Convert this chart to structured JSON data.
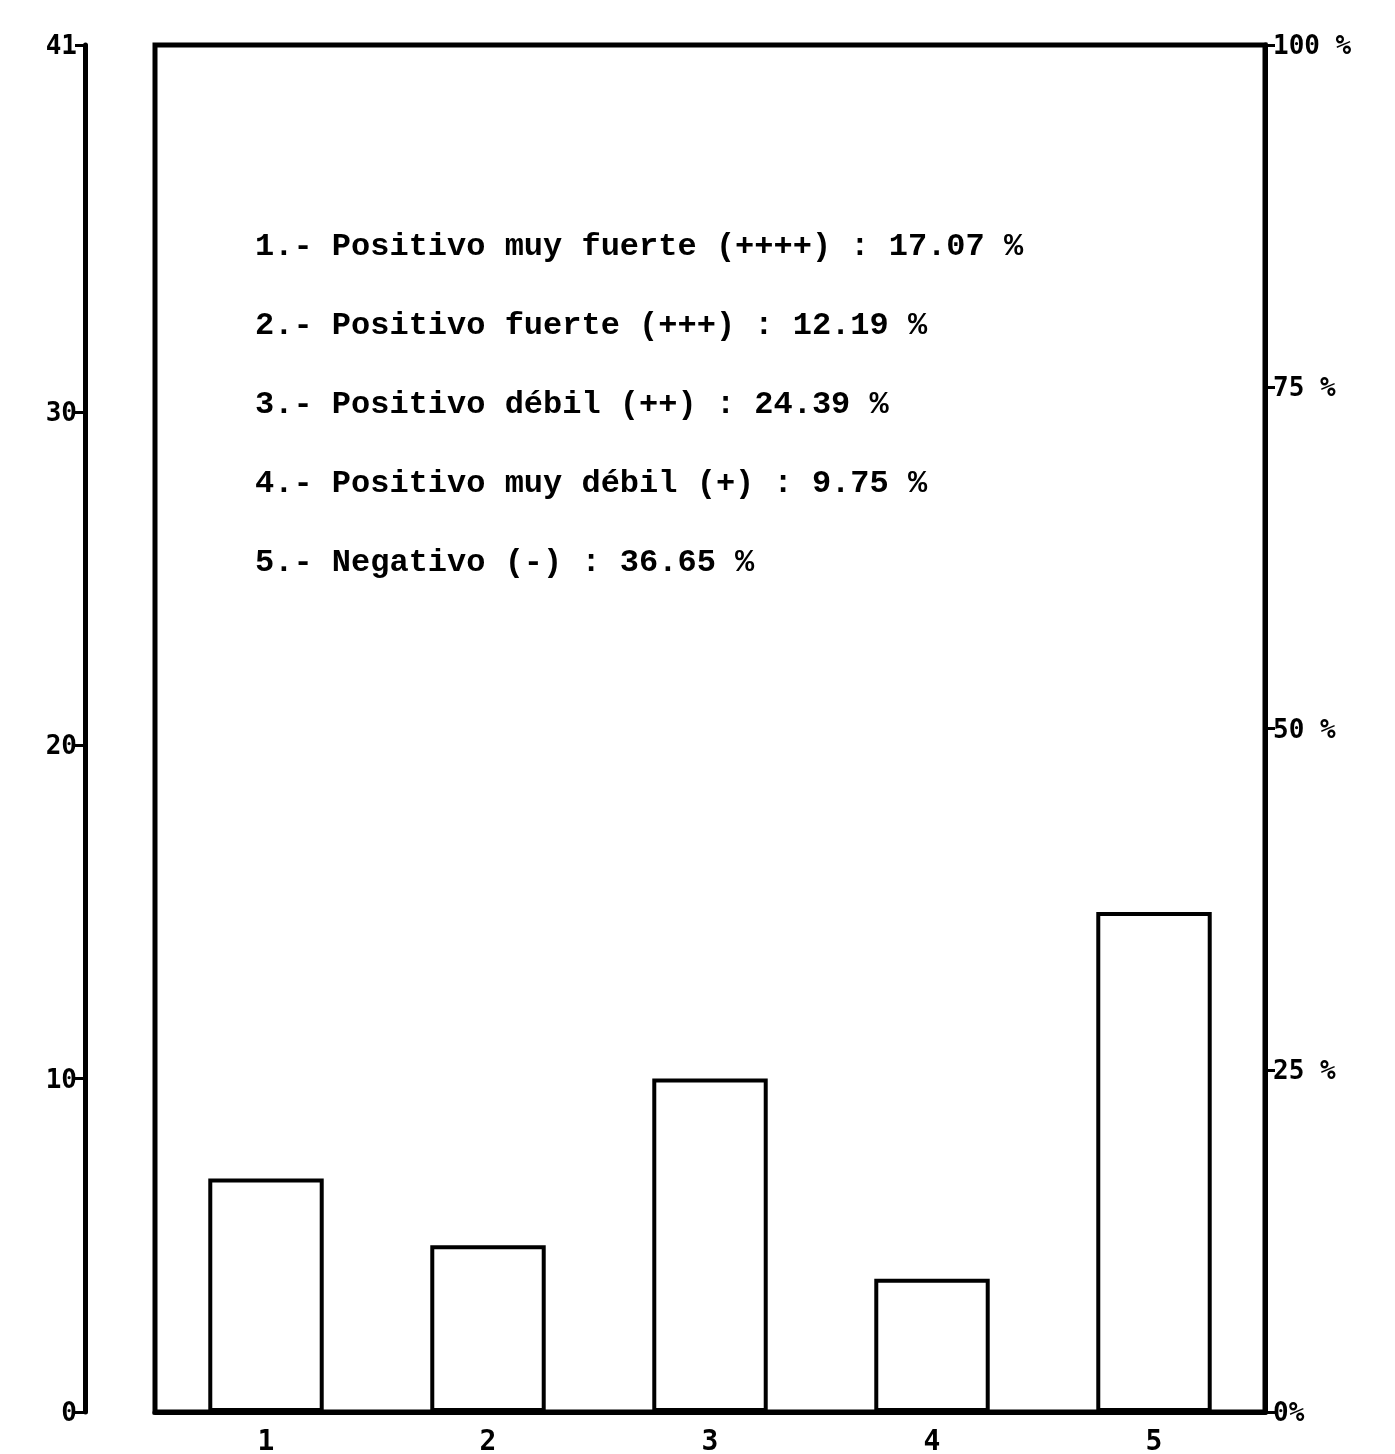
{
  "chart_data": {
    "type": "bar",
    "categories": [
      "1",
      "2",
      "3",
      "4",
      "5"
    ],
    "values": [
      7,
      5,
      10,
      4,
      15
    ],
    "color": "#ffffff",
    "ylim": [
      0,
      41
    ],
    "yticks": [
      0,
      10,
      20,
      30,
      41
    ],
    "y2lim": [
      0,
      100
    ],
    "y2ticks": [
      {
        "value": 0,
        "label": "0%"
      },
      {
        "value": 25,
        "label": "25 %"
      },
      {
        "value": 50,
        "label": "50 %"
      },
      {
        "value": 75,
        "label": "75 %"
      },
      {
        "value": 100,
        "label": "100 %"
      }
    ],
    "grid": false,
    "annotations": [
      "1.- Positivo muy fuerte (++++) : 17.07 %",
      "2.- Positivo fuerte (+++) : 12.19 %",
      "3.- Positivo débil (++) : 24.39 %",
      "4.- Positivo muy débil (+) : 9.75 %",
      "5.- Negativo (-) : 36.65 %"
    ]
  }
}
